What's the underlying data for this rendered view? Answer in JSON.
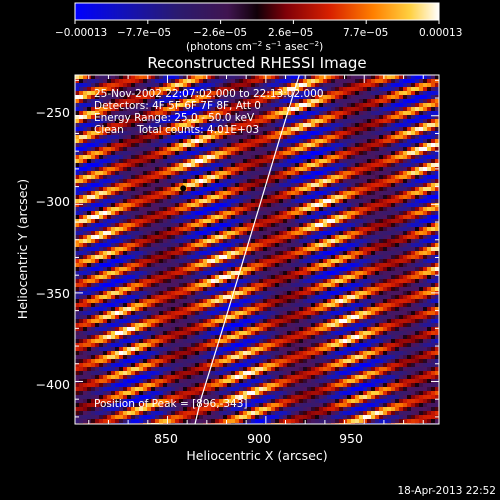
{
  "chart_data": {
    "type": "heatmap",
    "title": "Reconstructed RHESSI Image",
    "xlabel": "Heliocentric X (arcsec)",
    "ylabel": "Heliocentric Y (arcsec)",
    "xlim": [
      803,
      988
    ],
    "ylim": [
      -424,
      -227
    ],
    "x_ticks": [
      850,
      900,
      950
    ],
    "x_tick_labels": [
      "850",
      "900",
      "950"
    ],
    "y_ticks": [
      -250,
      -300,
      -350,
      -400
    ],
    "y_tick_labels": [
      "−250",
      "−300",
      "−350",
      "−400"
    ],
    "colorbar": {
      "range": [
        -0.00013,
        0.00013
      ],
      "tick_labels": [
        "−0.00013",
        "−7.7e−05",
        "−2.6e−05",
        "2.6e−05",
        "7.7e−05",
        "0.00013"
      ],
      "units_line": [
        "(photons cm",
        "−2",
        " s",
        "−1",
        " asec",
        "−2",
        ")"
      ]
    },
    "annotations": [
      "25-Nov-2002 22:07:02.000 to 22:13:02.000",
      "Detectors: 4F 5F 6F 7F 8F, Att 0",
      "Energy Range: 25.0 - 50.0 keV",
      "Clean    Total counts: 4.01E+03"
    ],
    "peak_label": "Position of Peak = [896,-343]",
    "peak_position": [
      896,
      -343
    ],
    "marker_position": [
      858,
      -291
    ],
    "limb_curve": [
      [
        917,
        -227
      ],
      [
        907,
        -263
      ],
      [
        897,
        -300
      ],
      [
        887,
        -337
      ],
      [
        877,
        -374
      ],
      [
        867,
        -410
      ],
      [
        864,
        -424
      ]
    ],
    "colormap": "rhessi-blue-purple-red-yellow-white",
    "colors": {
      "background": "#000000",
      "text": "#ffffff",
      "limb": "#ffffff"
    }
  },
  "footer": {
    "date": "18-Apr-2013 22:52"
  }
}
